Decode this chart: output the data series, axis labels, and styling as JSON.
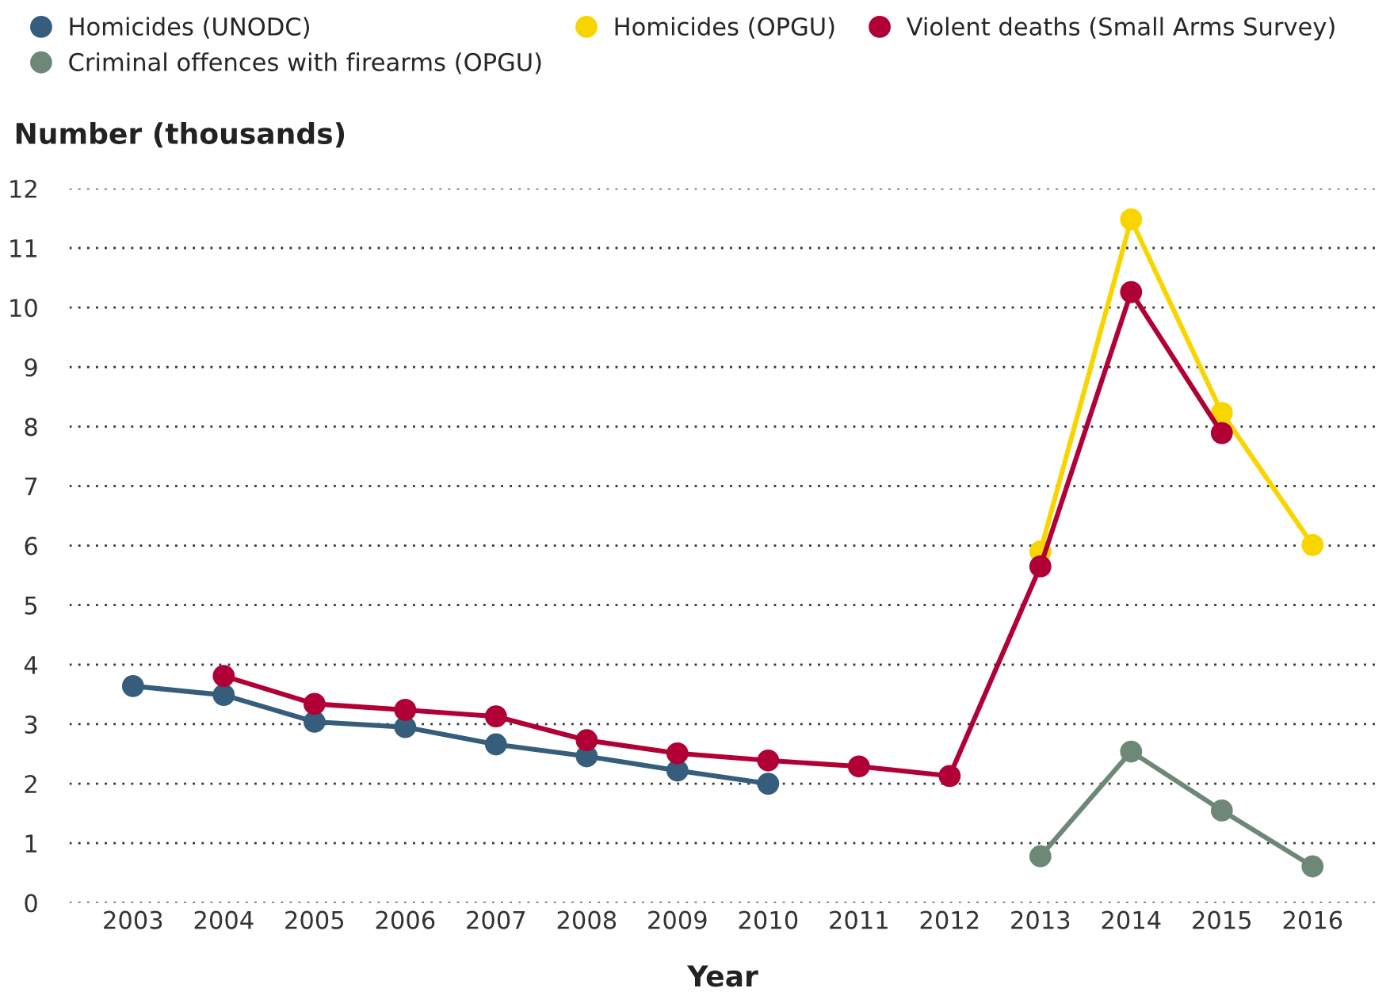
{
  "chart_data": {
    "type": "line",
    "xlabel": "Year",
    "ylabel": "Number (thousands)",
    "categories": [
      "2003",
      "2004",
      "2005",
      "2006",
      "2007",
      "2008",
      "2009",
      "2010",
      "2011",
      "2012",
      "2013",
      "2014",
      "2015",
      "2016"
    ],
    "series": [
      {
        "name": "Homicides (UNODC)",
        "color": "#365e7c",
        "values": [
          3.64,
          3.49,
          3.04,
          2.95,
          2.66,
          2.46,
          2.22,
          2.0,
          null,
          null,
          null,
          null,
          null,
          null
        ]
      },
      {
        "name": "Homicides (OPGU)",
        "color": "#f9d500",
        "values": [
          null,
          null,
          null,
          null,
          null,
          null,
          null,
          null,
          null,
          null,
          5.9,
          11.48,
          8.23,
          6.01
        ]
      },
      {
        "name": "Violent deaths (Small Arms Survey)",
        "color": "#b00036",
        "values": [
          null,
          3.81,
          3.34,
          3.24,
          3.13,
          2.73,
          2.51,
          2.39,
          2.29,
          2.13,
          5.65,
          10.26,
          7.89,
          null
        ]
      },
      {
        "name": "Criminal offences with firearms (OPGU)",
        "color": "#6e8878",
        "values": [
          null,
          null,
          null,
          null,
          null,
          null,
          null,
          null,
          null,
          null,
          0.78,
          2.54,
          1.55,
          0.61
        ]
      }
    ],
    "ylim": [
      0,
      12
    ],
    "yticks": [
      0,
      1,
      2,
      3,
      4,
      5,
      6,
      7,
      8,
      9,
      10,
      11,
      12
    ],
    "grid": "y",
    "legend": "top left",
    "marker": "circle",
    "line_style": "solid"
  }
}
